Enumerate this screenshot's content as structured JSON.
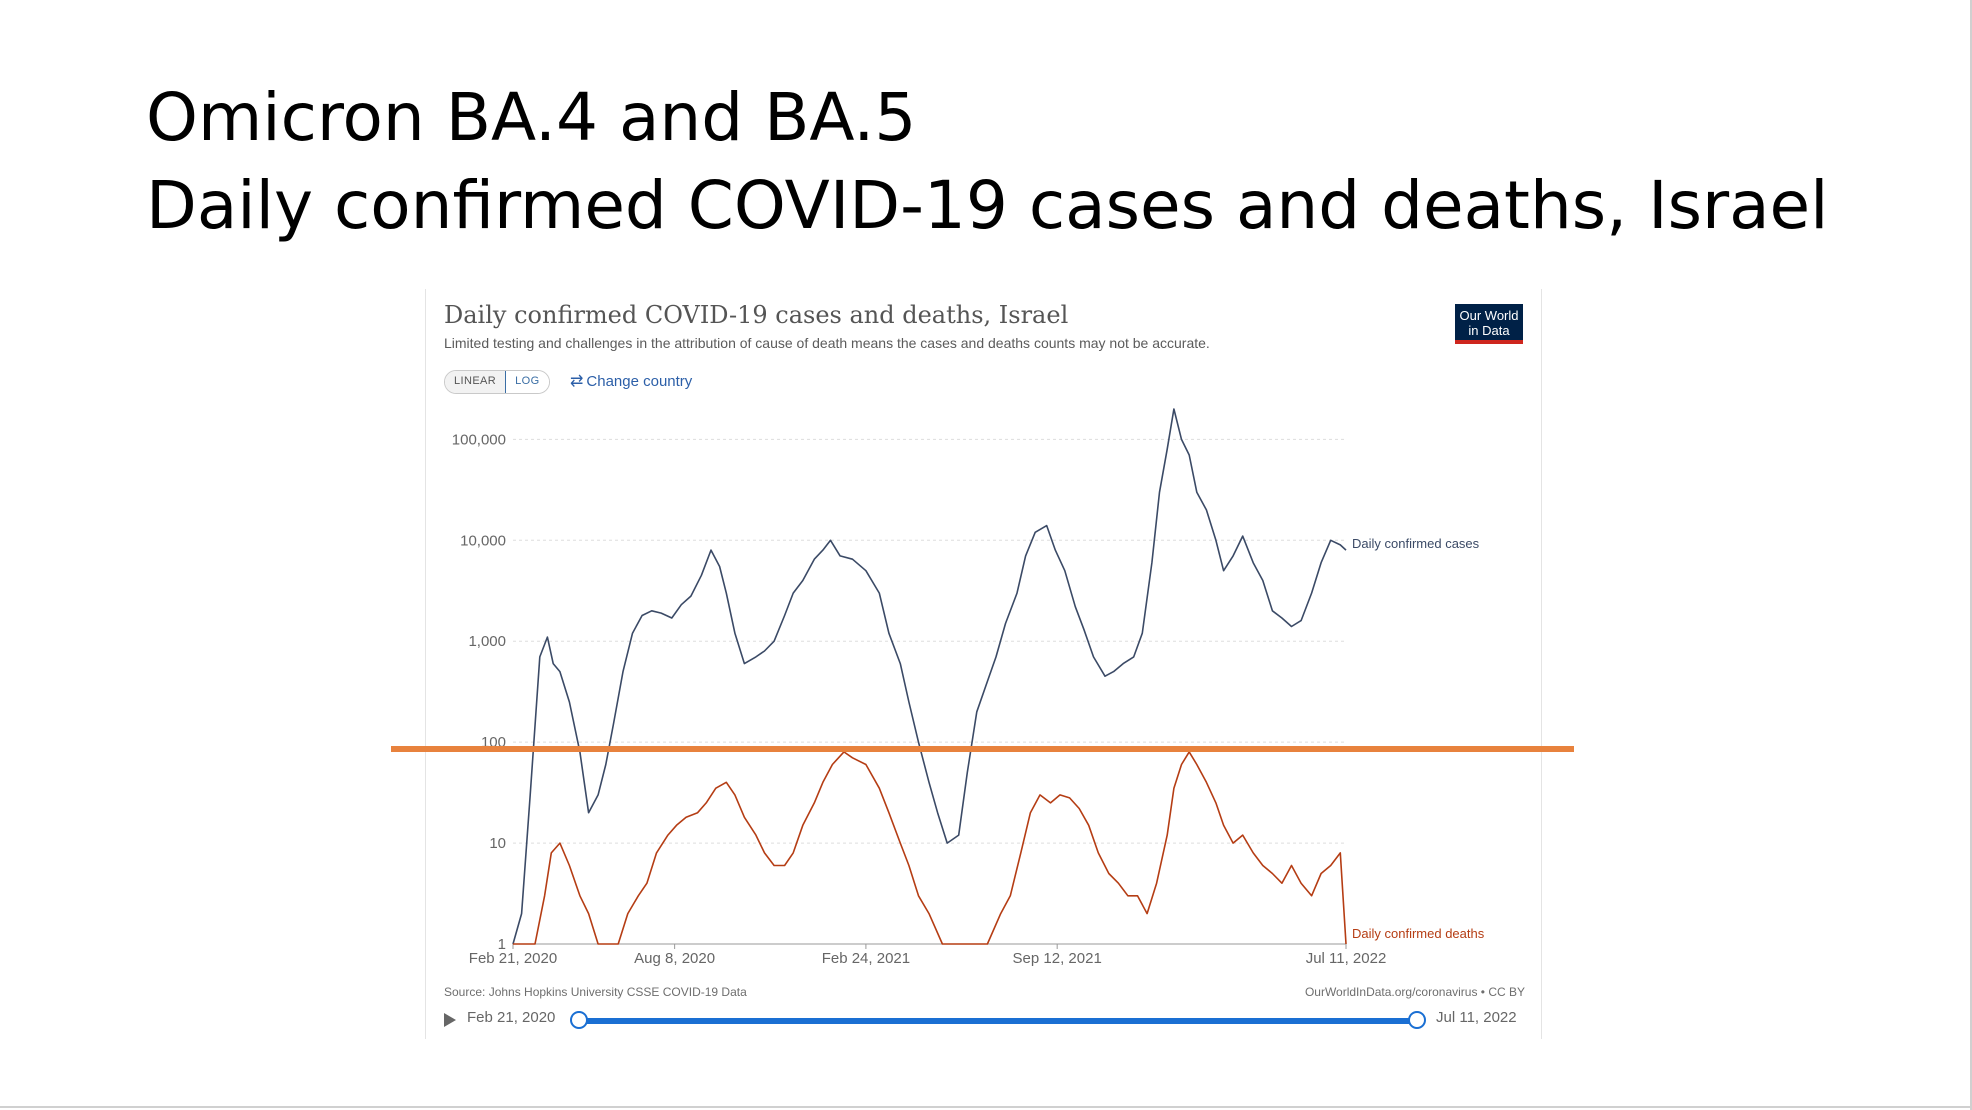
{
  "slide": {
    "title_line1": "Omicron BA.4 and BA.5",
    "title_line2": "Daily confirmed COVID-19 cases and deaths, Israel"
  },
  "colors": {
    "cases": "#3b4a66",
    "deaths": "#b53d14",
    "highlight_line": "#e8823d",
    "timeline": "#1a6fd3"
  },
  "controls": {
    "linear_label": "LINEAR",
    "log_label": "LOG",
    "change_country_label": "Change country",
    "change_country_icon": "swap-arrows-icon",
    "play_icon": "play-icon"
  },
  "timeline": {
    "start_label": "Feb 21, 2020",
    "end_label": "Jul 11, 2022"
  },
  "chart_data": {
    "type": "line",
    "title": "Daily confirmed COVID-19 cases and deaths, Israel",
    "subtitle": "Limited testing and challenges in the attribution of cause of death means the cases and deaths counts may not be accurate.",
    "logo": "Our World in Data",
    "source": "Source: Johns Hopkins University CSSE COVID-19 Data",
    "license": "OurWorldInData.org/coronavirus • CC BY",
    "y_scale": "log",
    "ylim": [
      1,
      200000
    ],
    "xlim": [
      "2020-02-21",
      "2022-07-11"
    ],
    "grid": true,
    "y_ticks": [
      {
        "value": 1,
        "label": "1"
      },
      {
        "value": 10,
        "label": "10"
      },
      {
        "value": 100,
        "label": "100"
      },
      {
        "value": 1000,
        "label": "1,000"
      },
      {
        "value": 10000,
        "label": "10,000"
      },
      {
        "value": 100000,
        "label": "100,000"
      }
    ],
    "x_ticks": [
      {
        "date": "2020-02-21",
        "label": "Feb 21, 2020"
      },
      {
        "date": "2020-08-08",
        "label": "Aug 8, 2020"
      },
      {
        "date": "2021-02-24",
        "label": "Feb 24, 2021"
      },
      {
        "date": "2021-09-12",
        "label": "Sep 12, 2021"
      },
      {
        "date": "2022-07-11",
        "label": "Jul 11, 2022"
      }
    ],
    "annotation_threshold": 100,
    "series": [
      {
        "name": "Daily confirmed cases",
        "x": [
          "2020-02-21",
          "2020-03-01",
          "2020-03-10",
          "2020-03-20",
          "2020-03-28",
          "2020-04-03",
          "2020-04-10",
          "2020-04-20",
          "2020-05-01",
          "2020-05-10",
          "2020-05-20",
          "2020-05-28",
          "2020-06-05",
          "2020-06-15",
          "2020-06-25",
          "2020-07-05",
          "2020-07-15",
          "2020-07-25",
          "2020-08-05",
          "2020-08-15",
          "2020-08-25",
          "2020-09-05",
          "2020-09-15",
          "2020-09-24",
          "2020-10-01",
          "2020-10-10",
          "2020-10-20",
          "2020-11-01",
          "2020-11-10",
          "2020-11-20",
          "2020-12-01",
          "2020-12-10",
          "2020-12-20",
          "2021-01-01",
          "2021-01-10",
          "2021-01-18",
          "2021-01-28",
          "2021-02-10",
          "2021-02-24",
          "2021-03-10",
          "2021-03-20",
          "2021-04-01",
          "2021-04-10",
          "2021-04-20",
          "2021-05-01",
          "2021-05-10",
          "2021-05-20",
          "2021-06-01",
          "2021-06-10",
          "2021-06-20",
          "2021-07-01",
          "2021-07-10",
          "2021-07-20",
          "2021-08-01",
          "2021-08-10",
          "2021-08-20",
          "2021-09-01",
          "2021-09-10",
          "2021-09-20",
          "2021-10-01",
          "2021-10-10",
          "2021-10-20",
          "2021-11-01",
          "2021-11-10",
          "2021-11-20",
          "2021-12-01",
          "2021-12-10",
          "2021-12-20",
          "2021-12-28",
          "2022-01-05",
          "2022-01-12",
          "2022-01-20",
          "2022-01-28",
          "2022-02-05",
          "2022-02-15",
          "2022-02-25",
          "2022-03-05",
          "2022-03-15",
          "2022-03-25",
          "2022-04-05",
          "2022-04-15",
          "2022-04-25",
          "2022-05-05",
          "2022-05-15",
          "2022-05-25",
          "2022-06-05",
          "2022-06-15",
          "2022-06-25",
          "2022-07-05",
          "2022-07-11"
        ],
        "values": [
          1,
          2,
          30,
          700,
          1100,
          600,
          500,
          250,
          80,
          20,
          30,
          60,
          150,
          500,
          1200,
          1800,
          2000,
          1900,
          1700,
          2300,
          2800,
          4500,
          8000,
          5500,
          3000,
          1200,
          600,
          700,
          800,
          1000,
          1800,
          3000,
          4000,
          6500,
          8000,
          10000,
          7000,
          6500,
          5000,
          3000,
          1200,
          600,
          250,
          100,
          40,
          20,
          10,
          12,
          50,
          200,
          400,
          700,
          1500,
          3000,
          7000,
          12000,
          14000,
          8000,
          5000,
          2200,
          1300,
          700,
          450,
          500,
          600,
          700,
          1200,
          6000,
          30000,
          80000,
          200000,
          100000,
          70000,
          30000,
          20000,
          10000,
          5000,
          7000,
          11000,
          6000,
          4000,
          2000,
          1700,
          1400,
          1600,
          3000,
          6000,
          10000,
          9000,
          8000
        ]
      },
      {
        "name": "Daily confirmed deaths",
        "x": [
          "2020-02-21",
          "2020-03-15",
          "2020-03-25",
          "2020-04-01",
          "2020-04-10",
          "2020-04-20",
          "2020-05-01",
          "2020-05-10",
          "2020-05-20",
          "2020-06-01",
          "2020-06-10",
          "2020-06-20",
          "2020-07-01",
          "2020-07-10",
          "2020-07-20",
          "2020-08-01",
          "2020-08-10",
          "2020-08-20",
          "2020-09-01",
          "2020-09-10",
          "2020-09-20",
          "2020-10-01",
          "2020-10-10",
          "2020-10-20",
          "2020-11-01",
          "2020-11-10",
          "2020-11-20",
          "2020-12-01",
          "2020-12-10",
          "2020-12-20",
          "2021-01-01",
          "2021-01-10",
          "2021-01-20",
          "2021-02-01",
          "2021-02-10",
          "2021-02-24",
          "2021-03-10",
          "2021-03-20",
          "2021-04-01",
          "2021-04-10",
          "2021-04-20",
          "2021-05-01",
          "2021-05-15",
          "2021-06-01",
          "2021-06-15",
          "2021-07-01",
          "2021-07-15",
          "2021-07-25",
          "2021-08-05",
          "2021-08-15",
          "2021-08-25",
          "2021-09-05",
          "2021-09-15",
          "2021-09-25",
          "2021-10-05",
          "2021-10-15",
          "2021-10-25",
          "2021-11-05",
          "2021-11-15",
          "2021-11-25",
          "2021-12-05",
          "2021-12-15",
          "2021-12-25",
          "2022-01-05",
          "2022-01-12",
          "2022-01-20",
          "2022-01-28",
          "2022-02-05",
          "2022-02-15",
          "2022-02-25",
          "2022-03-05",
          "2022-03-15",
          "2022-03-25",
          "2022-04-05",
          "2022-04-15",
          "2022-04-25",
          "2022-05-05",
          "2022-05-15",
          "2022-05-25",
          "2022-06-05",
          "2022-06-15",
          "2022-06-25",
          "2022-07-05",
          "2022-07-11"
        ],
        "values": [
          1,
          1,
          3,
          8,
          10,
          6,
          3,
          2,
          1,
          1,
          1,
          2,
          3,
          4,
          8,
          12,
          15,
          18,
          20,
          25,
          35,
          40,
          30,
          18,
          12,
          8,
          6,
          6,
          8,
          15,
          25,
          40,
          60,
          80,
          70,
          60,
          35,
          20,
          10,
          6,
          3,
          2,
          1,
          1,
          1,
          1,
          2,
          3,
          8,
          20,
          30,
          25,
          30,
          28,
          22,
          15,
          8,
          5,
          4,
          3,
          3,
          2,
          4,
          12,
          35,
          60,
          80,
          60,
          40,
          25,
          15,
          10,
          12,
          8,
          6,
          5,
          4,
          6,
          4,
          3,
          5,
          6,
          8,
          1
        ]
      }
    ]
  }
}
